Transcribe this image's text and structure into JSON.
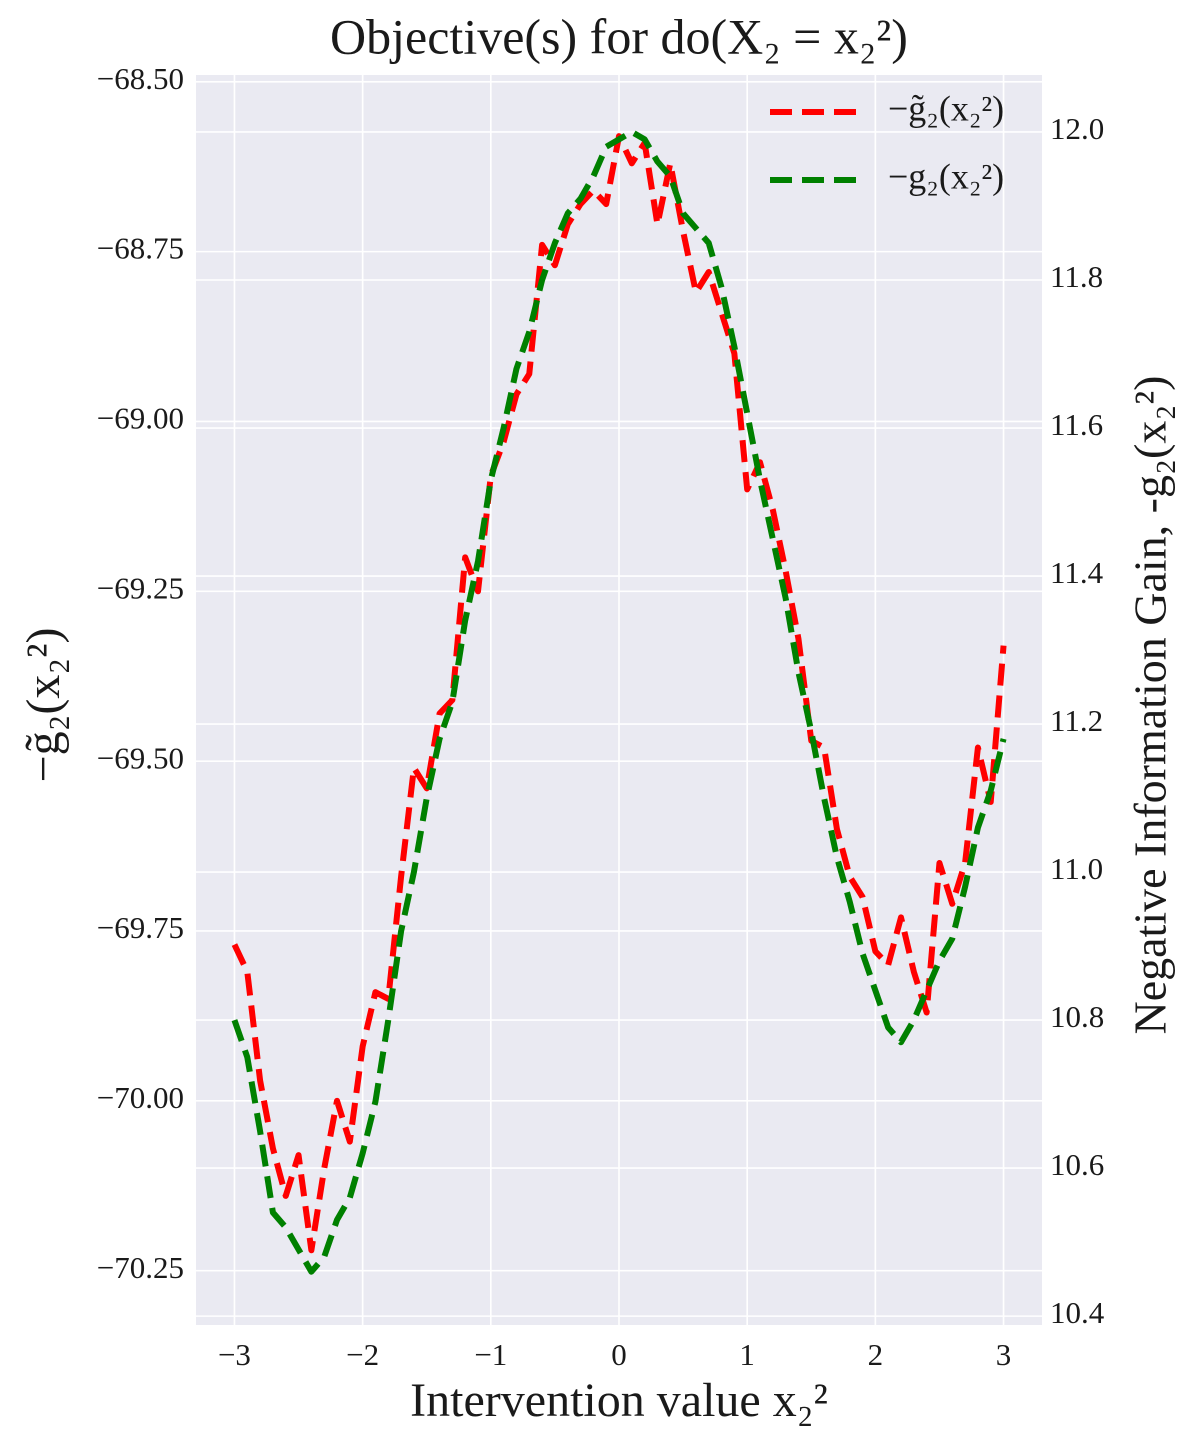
{
  "chart_data": {
    "type": "line",
    "title": "Objective(s) for do(X₂ = x₂²)",
    "xlabel": "Intervention value x₂²",
    "ylabel": "−g̃₂(x₂²)",
    "y2label": "Negative Information Gain, -g₂(x₂²)",
    "x": [
      -3.0,
      -2.9,
      -2.8,
      -2.7,
      -2.6,
      -2.5,
      -2.4,
      -2.3,
      -2.2,
      -2.1,
      -2.0,
      -1.9,
      -1.8,
      -1.7,
      -1.6,
      -1.5,
      -1.4,
      -1.3,
      -1.2,
      -1.1,
      -1.0,
      -0.9,
      -0.8,
      -0.7,
      -0.6,
      -0.5,
      -0.4,
      -0.3,
      -0.2,
      -0.1,
      0.0,
      0.1,
      0.2,
      0.3,
      0.4,
      0.5,
      0.6,
      0.7,
      0.8,
      0.9,
      1.0,
      1.1,
      1.2,
      1.3,
      1.4,
      1.5,
      1.6,
      1.7,
      1.8,
      1.9,
      2.0,
      2.1,
      2.2,
      2.3,
      2.4,
      2.5,
      2.6,
      2.7,
      2.8,
      2.9,
      3.0
    ],
    "series": [
      {
        "name": "−g̃₂(x₂²)",
        "color": "#ff0000",
        "axis": "y",
        "values": [
          -69.77,
          -69.81,
          -69.97,
          -70.07,
          -70.14,
          -70.08,
          -70.22,
          -70.1,
          -70.0,
          -70.06,
          -69.92,
          -69.84,
          -69.85,
          -69.67,
          -69.51,
          -69.54,
          -69.43,
          -69.41,
          -69.2,
          -69.25,
          -69.08,
          -69.03,
          -68.96,
          -68.93,
          -68.74,
          -68.77,
          -68.71,
          -68.68,
          -68.66,
          -68.68,
          -68.58,
          -68.62,
          -68.59,
          -68.71,
          -68.62,
          -68.72,
          -68.81,
          -68.78,
          -68.84,
          -68.9,
          -69.1,
          -69.06,
          -69.13,
          -69.22,
          -69.32,
          -69.47,
          -69.48,
          -69.6,
          -69.67,
          -69.7,
          -69.78,
          -69.8,
          -69.73,
          -69.81,
          -69.87,
          -69.65,
          -69.71,
          -69.65,
          -69.48,
          -69.56,
          -69.33
        ]
      },
      {
        "name": "−g₂(x₂²)",
        "color": "#008000",
        "axis": "y2",
        "values": [
          10.8,
          10.75,
          10.65,
          10.54,
          10.52,
          10.49,
          10.46,
          10.48,
          10.53,
          10.56,
          10.62,
          10.69,
          10.8,
          10.92,
          11.0,
          11.1,
          11.18,
          11.23,
          11.34,
          11.42,
          11.53,
          11.6,
          11.68,
          11.73,
          11.8,
          11.85,
          11.89,
          11.91,
          11.94,
          11.98,
          11.99,
          12.0,
          11.99,
          11.96,
          11.94,
          11.89,
          11.87,
          11.85,
          11.79,
          11.71,
          11.62,
          11.53,
          11.45,
          11.37,
          11.27,
          11.19,
          11.1,
          11.02,
          10.96,
          10.89,
          10.84,
          10.79,
          10.77,
          10.8,
          10.84,
          10.88,
          10.91,
          10.98,
          11.06,
          11.11,
          11.18
        ]
      }
    ],
    "xlim": [
      -3.3,
      3.3
    ],
    "xticks": [
      {
        "value": -3,
        "label": "−3"
      },
      {
        "value": -2,
        "label": "−2"
      },
      {
        "value": -1,
        "label": "−1"
      },
      0,
      1,
      2,
      3
    ],
    "ylim": [
      -70.33,
      -68.49
    ],
    "yticks": [
      {
        "value": -68.5,
        "label": "−68.50"
      },
      {
        "value": -68.75,
        "label": "−68.75"
      },
      {
        "value": -69.0,
        "label": "−69.00"
      },
      {
        "value": -69.25,
        "label": "−69.25"
      },
      {
        "value": -69.5,
        "label": "−69.50"
      },
      {
        "value": -69.75,
        "label": "−69.75"
      },
      {
        "value": -70.0,
        "label": "−70.00"
      },
      {
        "value": -70.25,
        "label": "−70.25"
      }
    ],
    "y2lim": [
      10.388,
      12.077
    ],
    "y2ticks": [
      10.4,
      10.6,
      10.8,
      {
        "value": 11.0,
        "label": "11.0"
      },
      11.2,
      11.4,
      11.6,
      11.8,
      {
        "value": 12.0,
        "label": "12.0"
      }
    ],
    "grid": true,
    "legend": "upper right"
  }
}
